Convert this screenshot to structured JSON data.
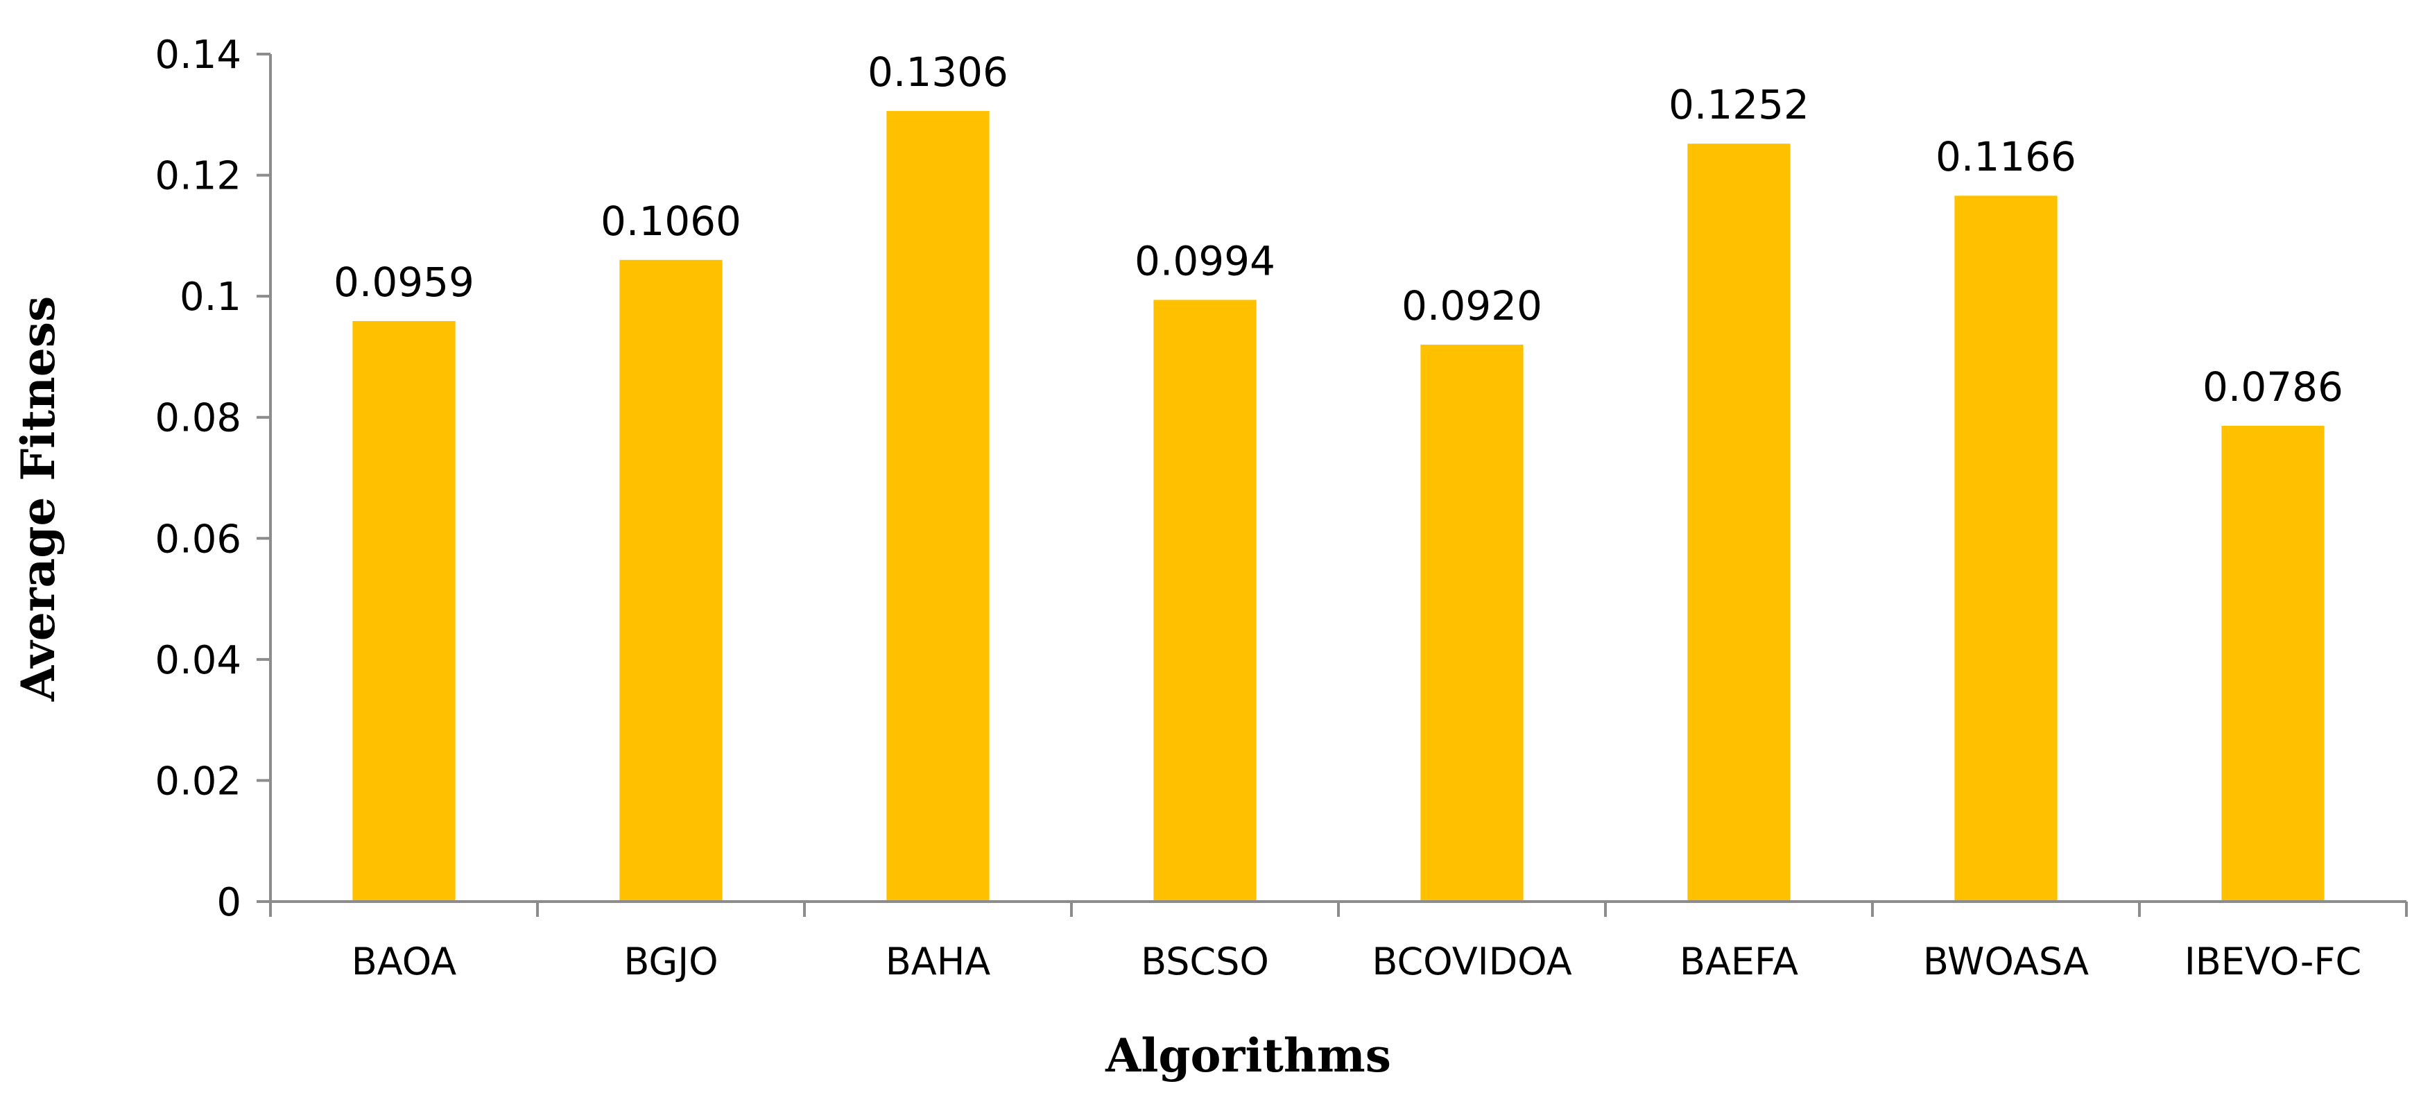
{
  "chart_data": {
    "type": "bar",
    "title": "",
    "xlabel": "Algorithms",
    "ylabel": "Average Fitness",
    "categories": [
      "BAOA",
      "BGJO",
      "BAHA",
      "BSCSO",
      "BCOVIDOA",
      "BAEFA",
      "BWOASA",
      "IBEVO-FC"
    ],
    "values": [
      0.0959,
      0.106,
      0.1306,
      0.0994,
      0.092,
      0.1252,
      0.1166,
      0.0786
    ],
    "data_labels": [
      "0.0959",
      "0.1060",
      "0.1306",
      "0.0994",
      "0.0920",
      "0.1252",
      "0.1166",
      "0.0786"
    ],
    "ylim": [
      0,
      0.14
    ],
    "yticks": [
      0,
      0.02,
      0.04,
      0.06,
      0.08,
      0.1,
      0.12,
      0.14
    ],
    "ytick_labels": [
      "0",
      "0.02",
      "0.04",
      "0.06",
      "0.08",
      "0.1",
      "0.12",
      "0.14"
    ],
    "grid": false,
    "legend": "none",
    "bar_color": "#FFC000",
    "axis_color": "#8C8C8C"
  }
}
